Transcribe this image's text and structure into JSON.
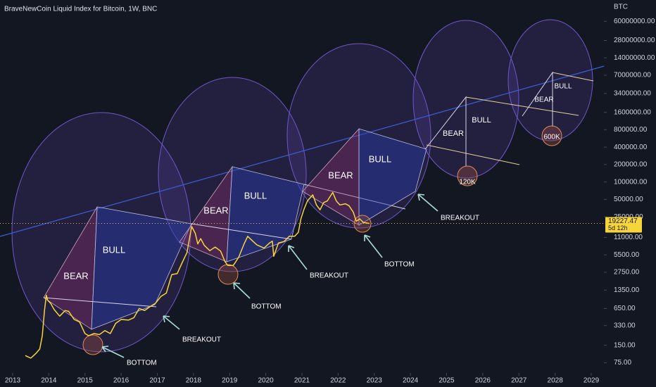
{
  "chart_data": {
    "type": "line",
    "title": "BraveNewCoin Liquid Index for Bitcoin, 1W, BNC",
    "y_label": "BTC",
    "log_y": true,
    "color": "#f7d53a",
    "x": [
      2013.35,
      2013.5,
      2013.65,
      2013.75,
      2013.82,
      2013.88,
      2013.93,
      2013.97,
      2014.05,
      2014.15,
      2014.3,
      2014.45,
      2014.55,
      2014.7,
      2014.85,
      2015.0,
      2015.1,
      2015.25,
      2015.4,
      2015.55,
      2015.7,
      2015.85,
      2016.0,
      2016.2,
      2016.35,
      2016.5,
      2016.65,
      2016.8,
      2016.95,
      2017.1,
      2017.25,
      2017.4,
      2017.55,
      2017.7,
      2017.82,
      2017.95,
      2018.05,
      2018.12,
      2018.2,
      2018.3,
      2018.45,
      2018.6,
      2018.75,
      2018.87,
      2018.95,
      2019.1,
      2019.25,
      2019.4,
      2019.5,
      2019.6,
      2019.75,
      2019.95,
      2020.1,
      2020.18,
      2020.22,
      2020.35,
      2020.5,
      2020.65,
      2020.8,
      2020.9,
      2020.97,
      2021.05,
      2021.15,
      2021.3,
      2021.4,
      2021.5,
      2021.6,
      2021.7,
      2021.85,
      2021.95,
      2022.05,
      2022.2,
      2022.3,
      2022.42,
      2022.5,
      2022.6,
      2022.7,
      2022.8,
      2022.86
    ],
    "values": [
      100,
      90,
      110,
      130,
      220,
      600,
      1100,
      900,
      800,
      620,
      480,
      600,
      580,
      420,
      380,
      240,
      220,
      240,
      230,
      270,
      240,
      360,
      420,
      410,
      450,
      650,
      600,
      700,
      800,
      1050,
      1200,
      2500,
      2600,
      4200,
      6000,
      17000,
      13000,
      8500,
      10500,
      8000,
      6500,
      7500,
      6400,
      4200,
      3600,
      3600,
      5000,
      8500,
      11500,
      10000,
      8200,
      7200,
      8800,
      9500,
      5200,
      8800,
      9300,
      11500,
      11500,
      13500,
      23000,
      33000,
      47000,
      60000,
      40000,
      33000,
      44000,
      47000,
      66000,
      47000,
      40000,
      42000,
      39000,
      30000,
      21000,
      23000,
      20000,
      19500,
      19227.47
    ],
    "countdown": "5d 12h",
    "xlim": [
      2012.65,
      2029.35
    ],
    "xticks": [
      2013,
      2014,
      2015,
      2016,
      2017,
      2018,
      2019,
      2020,
      2021,
      2022,
      2023,
      2024,
      2025,
      2026,
      2027,
      2028,
      2029
    ],
    "ylim": [
      50,
      140000000
    ],
    "yticks": [
      {
        "value": 60000000,
        "label": "60000000.00"
      },
      {
        "value": 28000000,
        "label": "28000000.00"
      },
      {
        "value": 14000000,
        "label": "14000000.00"
      },
      {
        "value": 7000000,
        "label": "7000000.00"
      },
      {
        "value": 3400000,
        "label": "3400000.00"
      },
      {
        "value": 1600000,
        "label": "1600000.00"
      },
      {
        "value": 800000,
        "label": "800000.00"
      },
      {
        "value": 400000,
        "label": "400000.00"
      },
      {
        "value": 200000,
        "label": "200000.00"
      },
      {
        "value": 100000,
        "label": "100000.00"
      },
      {
        "value": 50000,
        "label": "50000.00"
      },
      {
        "value": 25000,
        "label": "25000.00"
      },
      {
        "value": 11000,
        "label": "11000.00"
      },
      {
        "value": 5500,
        "label": "5500.00"
      },
      {
        "value": 2750,
        "label": "2750.00"
      },
      {
        "value": 1350,
        "label": "1350.00"
      },
      {
        "value": 650,
        "label": "650.00"
      },
      {
        "value": 330,
        "label": "330.00"
      },
      {
        "value": 150,
        "label": "150.00"
      },
      {
        "value": 75,
        "label": "75.00"
      }
    ],
    "annotations": [
      "BEAR",
      "BULL",
      "BREAKOUT",
      "BOTTOM",
      "BEAR",
      "BULL",
      "BOTTOM",
      "BREAKOUT",
      "BEAR",
      "BULL",
      "BOTTOM",
      "BREAKOUT",
      "BEAR",
      "BULL",
      "120K",
      "BEAR",
      "BULL",
      "600K"
    ]
  }
}
